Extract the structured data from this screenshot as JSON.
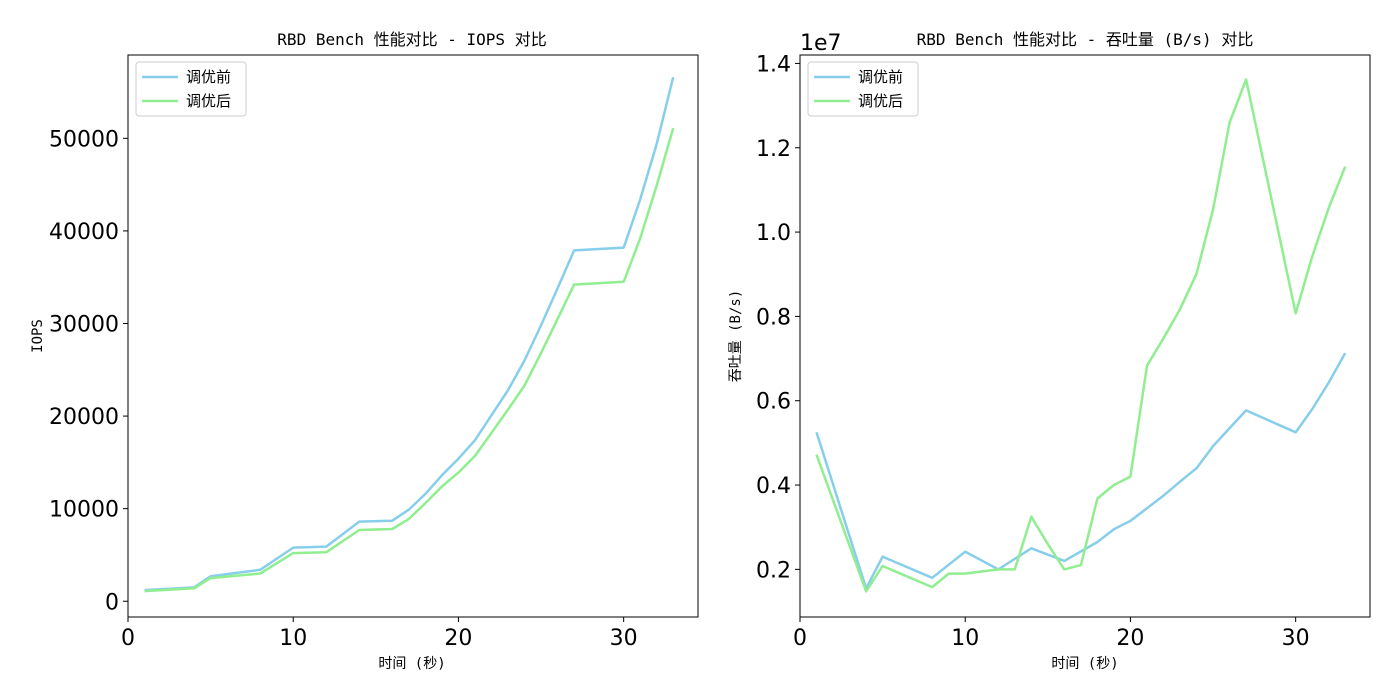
{
  "chart_data": [
    {
      "type": "line",
      "title": "RBD Bench 性能对比 - IOPS 对比",
      "xlabel": "时间 (秒)",
      "ylabel": "IOPS",
      "xlim": [
        0,
        34.5
      ],
      "ylim": [
        -1700,
        59000
      ],
      "xticks": [
        0,
        10,
        20,
        30
      ],
      "yticks": [
        0,
        10000,
        20000,
        30000,
        40000,
        50000
      ],
      "offset_text": "",
      "legend_position": "top-left",
      "series": [
        {
          "name": "调优前",
          "color": "#87CEEB",
          "x": [
            1,
            4,
            5,
            8,
            10,
            12,
            14,
            16,
            17,
            18,
            19,
            20,
            21,
            22,
            23,
            24,
            25,
            26,
            27,
            30,
            31,
            32,
            33
          ],
          "y": [
            1200,
            1500,
            2700,
            3400,
            5800,
            5900,
            8600,
            8700,
            9900,
            11600,
            13600,
            15400,
            17400,
            20100,
            22800,
            26000,
            29800,
            33800,
            37900,
            38200,
            43400,
            49400,
            56600
          ]
        },
        {
          "name": "调优后",
          "color": "#90EE90",
          "x": [
            1,
            4,
            5,
            8,
            10,
            12,
            14,
            16,
            17,
            18,
            19,
            20,
            21,
            22,
            23,
            24,
            25,
            26,
            27,
            30,
            31,
            32,
            33
          ],
          "y": [
            1100,
            1400,
            2500,
            3000,
            5200,
            5300,
            7700,
            7800,
            8900,
            10600,
            12400,
            13900,
            15700,
            18200,
            20700,
            23300,
            26800,
            30500,
            34200,
            34500,
            39200,
            44900,
            51100
          ]
        }
      ]
    },
    {
      "type": "line",
      "title": "RBD Bench 性能对比 - 吞吐量 (B/s) 对比",
      "xlabel": "时间 (秒)",
      "ylabel": "吞吐量 (B/s)",
      "xlim": [
        0,
        34.5
      ],
      "ylim": [
        870000,
        14200000
      ],
      "xticks": [
        0,
        10,
        20,
        30
      ],
      "yticks": [
        0.2,
        0.4,
        0.6,
        0.8,
        1.0,
        1.2,
        1.4
      ],
      "ytick_scale": 10000000,
      "offset_text": "1e7",
      "legend_position": "top-left",
      "series": [
        {
          "name": "调优前",
          "color": "#87CEEB",
          "x": [
            1,
            4,
            5,
            8,
            10,
            12,
            14,
            16,
            18,
            19,
            20,
            21,
            22,
            23,
            24,
            25,
            26,
            27,
            30,
            31,
            32,
            33
          ],
          "y": [
            5250000,
            1550000,
            2300000,
            1800000,
            2420000,
            2000000,
            2500000,
            2200000,
            2650000,
            2950000,
            3150000,
            3450000,
            3750000,
            4080000,
            4400000,
            4920000,
            5350000,
            5770000,
            5250000,
            5800000,
            6430000,
            7130000
          ]
        },
        {
          "name": "调优后",
          "color": "#90EE90",
          "x": [
            1,
            4,
            5,
            8,
            9,
            10,
            11,
            12,
            13,
            14,
            15,
            16,
            17,
            18,
            19,
            20,
            21,
            22,
            23,
            24,
            25,
            26,
            27,
            30,
            31,
            32,
            33
          ],
          "y": [
            4720000,
            1480000,
            2080000,
            1580000,
            1900000,
            1900000,
            1950000,
            2000000,
            2000000,
            3250000,
            2600000,
            2000000,
            2100000,
            3680000,
            4000000,
            4200000,
            6830000,
            7480000,
            8170000,
            9010000,
            10530000,
            12600000,
            13620000,
            8070000,
            9420000,
            10570000,
            11550000
          ]
        }
      ]
    }
  ]
}
